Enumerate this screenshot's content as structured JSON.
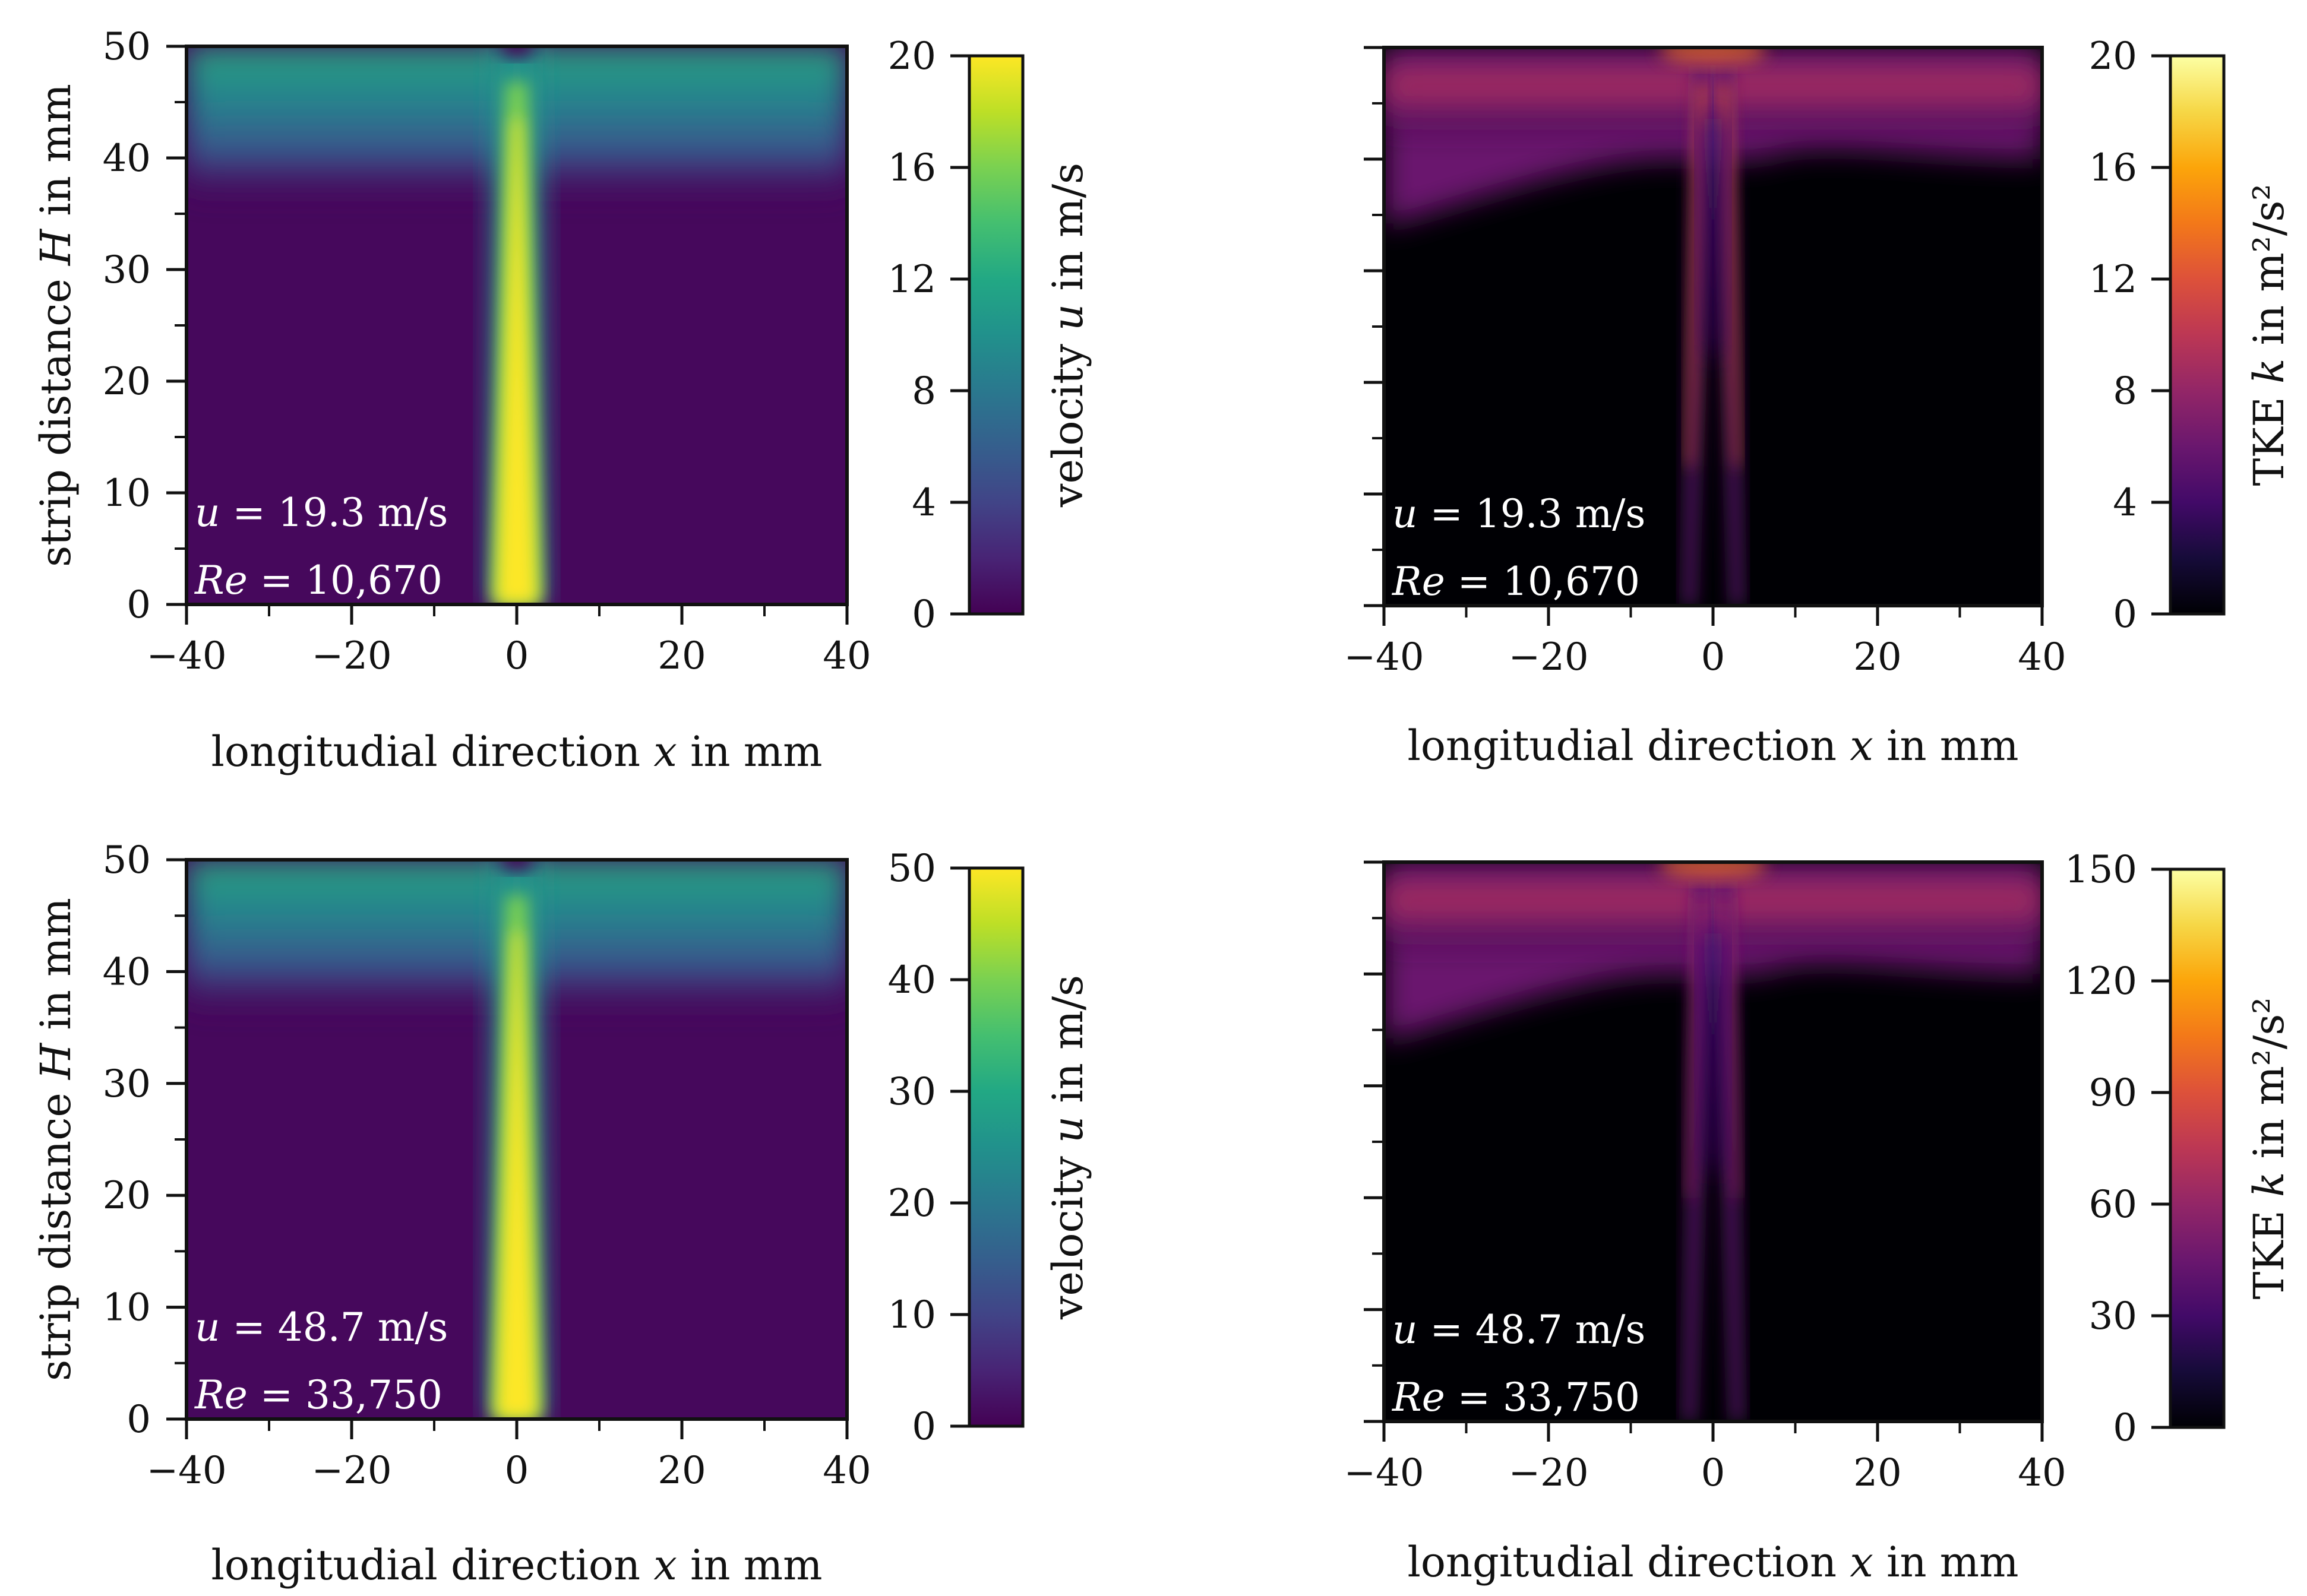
{
  "colors": {
    "axis": "#111111",
    "annotation": "#ffffff"
  },
  "chart_data": [
    {
      "type": "heatmap",
      "id": "vel-low",
      "colormap": "viridis",
      "field": "velocity",
      "xlabel": "longitudial direction x in mm",
      "ylabel": "strip distance H in mm",
      "xlim": [
        -40,
        40
      ],
      "ylim": [
        0,
        50
      ],
      "xticks": [
        "−40",
        "−20",
        "0",
        "20",
        "40"
      ],
      "yticks": [
        "0",
        "10",
        "20",
        "30",
        "40",
        "50"
      ],
      "colorbar": {
        "label": "velocity u in m/s",
        "range": [
          0,
          20
        ],
        "ticks": [
          "0",
          "4",
          "8",
          "12",
          "16",
          "20"
        ]
      },
      "annotation": {
        "u_sym": "u",
        "u_text": " = 19.3 m/s",
        "re_sym": "Re",
        "re_text": " = 10,670"
      }
    },
    {
      "type": "heatmap",
      "id": "tke-low",
      "colormap": "inferno",
      "field": "tke",
      "xlabel": "longitudial direction x in mm",
      "ylabel": "",
      "xlim": [
        -40,
        40
      ],
      "ylim": [
        0,
        50
      ],
      "xticks": [
        "−40",
        "−20",
        "0",
        "20",
        "40"
      ],
      "yticks": [],
      "colorbar": {
        "label": "TKE k in m²/s²",
        "range": [
          0,
          20
        ],
        "ticks": [
          "0",
          "4",
          "8",
          "12",
          "16",
          "20"
        ]
      },
      "annotation": {
        "u_sym": "u",
        "u_text": " = 19.3 m/s",
        "re_sym": "Re",
        "re_text": " = 10,670"
      }
    },
    {
      "type": "heatmap",
      "id": "vel-high",
      "colormap": "viridis",
      "field": "velocity",
      "xlabel": "longitudial direction x in mm",
      "ylabel": "strip distance H in mm",
      "xlim": [
        -40,
        40
      ],
      "ylim": [
        0,
        50
      ],
      "xticks": [
        "−40",
        "−20",
        "0",
        "20",
        "40"
      ],
      "yticks": [
        "0",
        "10",
        "20",
        "30",
        "40",
        "50"
      ],
      "colorbar": {
        "label": "velocity u in m/s",
        "range": [
          0,
          50
        ],
        "ticks": [
          "0",
          "10",
          "20",
          "30",
          "40",
          "50"
        ]
      },
      "annotation": {
        "u_sym": "u",
        "u_text": " = 48.7 m/s",
        "re_sym": "Re",
        "re_text": " = 33,750"
      }
    },
    {
      "type": "heatmap",
      "id": "tke-high",
      "colormap": "inferno",
      "field": "tke",
      "xlabel": "longitudial direction x in mm",
      "ylabel": "",
      "xlim": [
        -40,
        40
      ],
      "ylim": [
        0,
        50
      ],
      "xticks": [
        "−40",
        "−20",
        "0",
        "20",
        "40"
      ],
      "yticks": [],
      "colorbar": {
        "label": "TKE k in m²/s²",
        "range": [
          0,
          150
        ],
        "ticks": [
          "0",
          "30",
          "60",
          "90",
          "120",
          "150"
        ]
      },
      "annotation": {
        "u_sym": "u",
        "u_text": " = 48.7 m/s",
        "re_sym": "Re",
        "re_text": " = 33,750"
      }
    }
  ]
}
